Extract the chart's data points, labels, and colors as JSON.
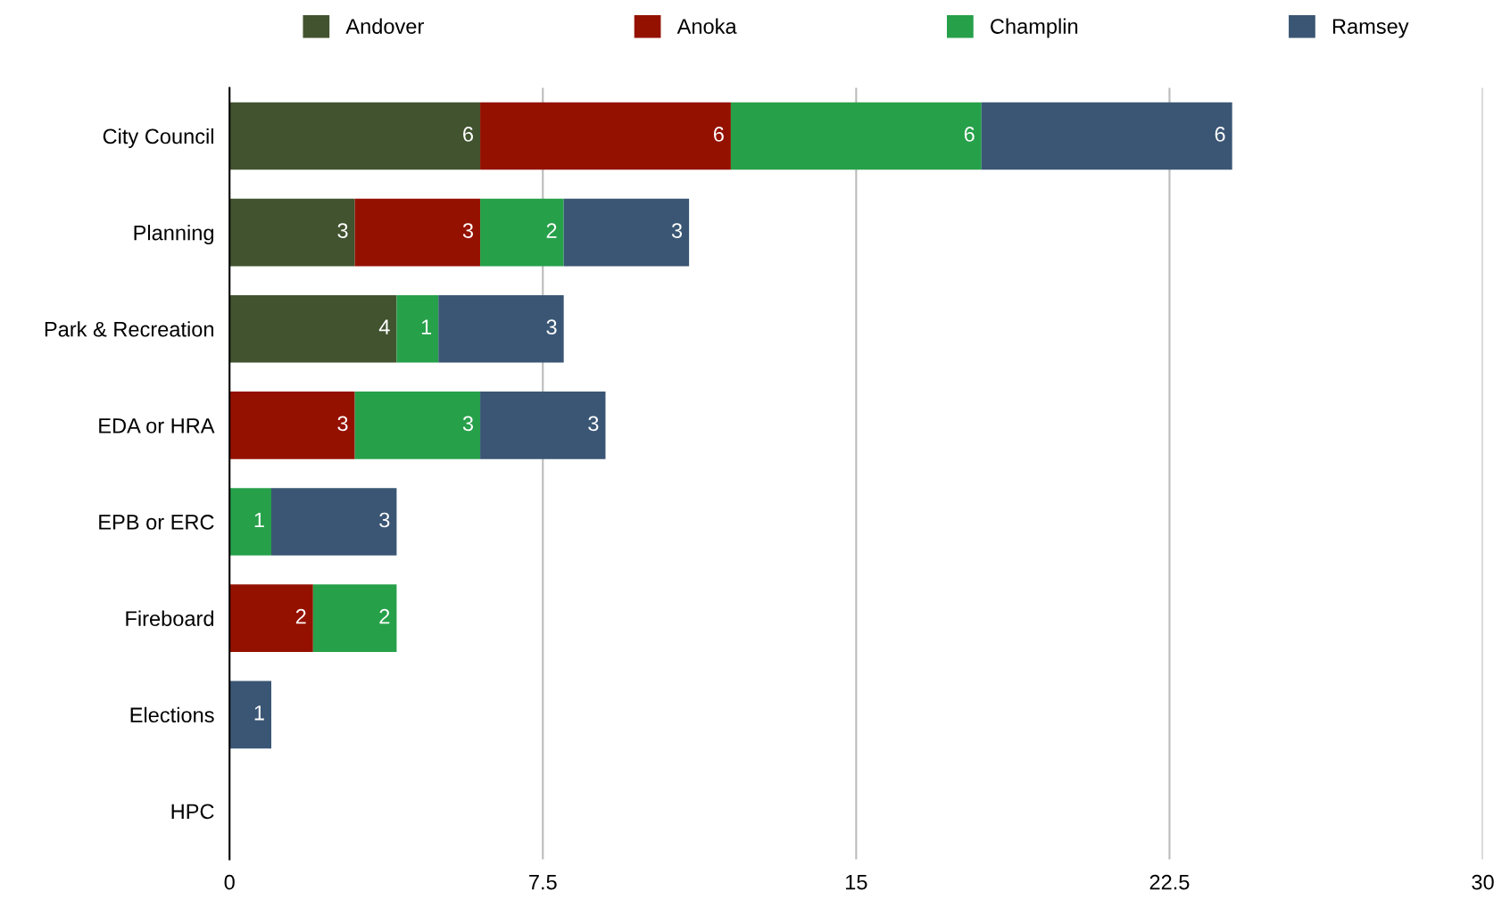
{
  "chart_data": {
    "type": "bar",
    "orientation": "horizontal",
    "stacked": true,
    "data_labels": true,
    "grid": "x",
    "legend": "top",
    "categories": [
      "City Council",
      "Planning",
      "Park & Recreation",
      "EDA or HRA",
      "EPB or ERC",
      "Fireboard",
      "Elections",
      "HPC"
    ],
    "series": [
      {
        "name": "Andover",
        "color": "#41532f",
        "values": [
          6,
          3,
          4,
          null,
          null,
          null,
          null,
          null
        ]
      },
      {
        "name": "Anoka",
        "color": "#941100",
        "values": [
          6,
          3,
          null,
          3,
          null,
          2,
          null,
          null
        ]
      },
      {
        "name": "Champlin",
        "color": "#27a04a",
        "values": [
          6,
          2,
          1,
          3,
          1,
          2,
          null,
          null
        ]
      },
      {
        "name": "Ramsey",
        "color": "#3a5674",
        "values": [
          6,
          3,
          3,
          3,
          3,
          null,
          1,
          null
        ]
      }
    ],
    "xlim": [
      0,
      30
    ],
    "xticks": [
      0,
      7.5,
      15,
      22.5,
      30
    ]
  }
}
